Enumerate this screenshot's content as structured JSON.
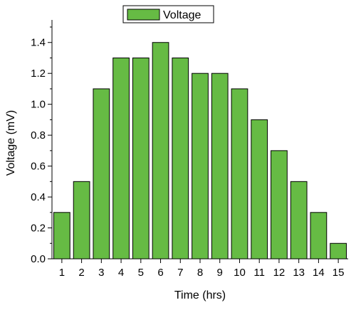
{
  "chart_data": {
    "type": "bar",
    "categories": [
      "1",
      "2",
      "3",
      "4",
      "5",
      "6",
      "7",
      "8",
      "9",
      "10",
      "11",
      "12",
      "13",
      "14",
      "15"
    ],
    "series": [
      {
        "name": "Voltage",
        "values": [
          0.3,
          0.5,
          1.1,
          1.3,
          1.3,
          1.4,
          1.3,
          1.2,
          1.2,
          1.1,
          0.9,
          0.7,
          0.5,
          0.3,
          0.1
        ],
        "color": "#66bb44"
      }
    ],
    "xlabel": "Time (hrs)",
    "ylabel": "Voltage (mV)",
    "ylim": [
      0,
      1.5
    ],
    "yticks": [
      "0.0",
      "0.2",
      "0.4",
      "0.6",
      "0.8",
      "1.0",
      "1.2",
      "1.4"
    ],
    "grid": false,
    "legend_position": "top-center"
  }
}
